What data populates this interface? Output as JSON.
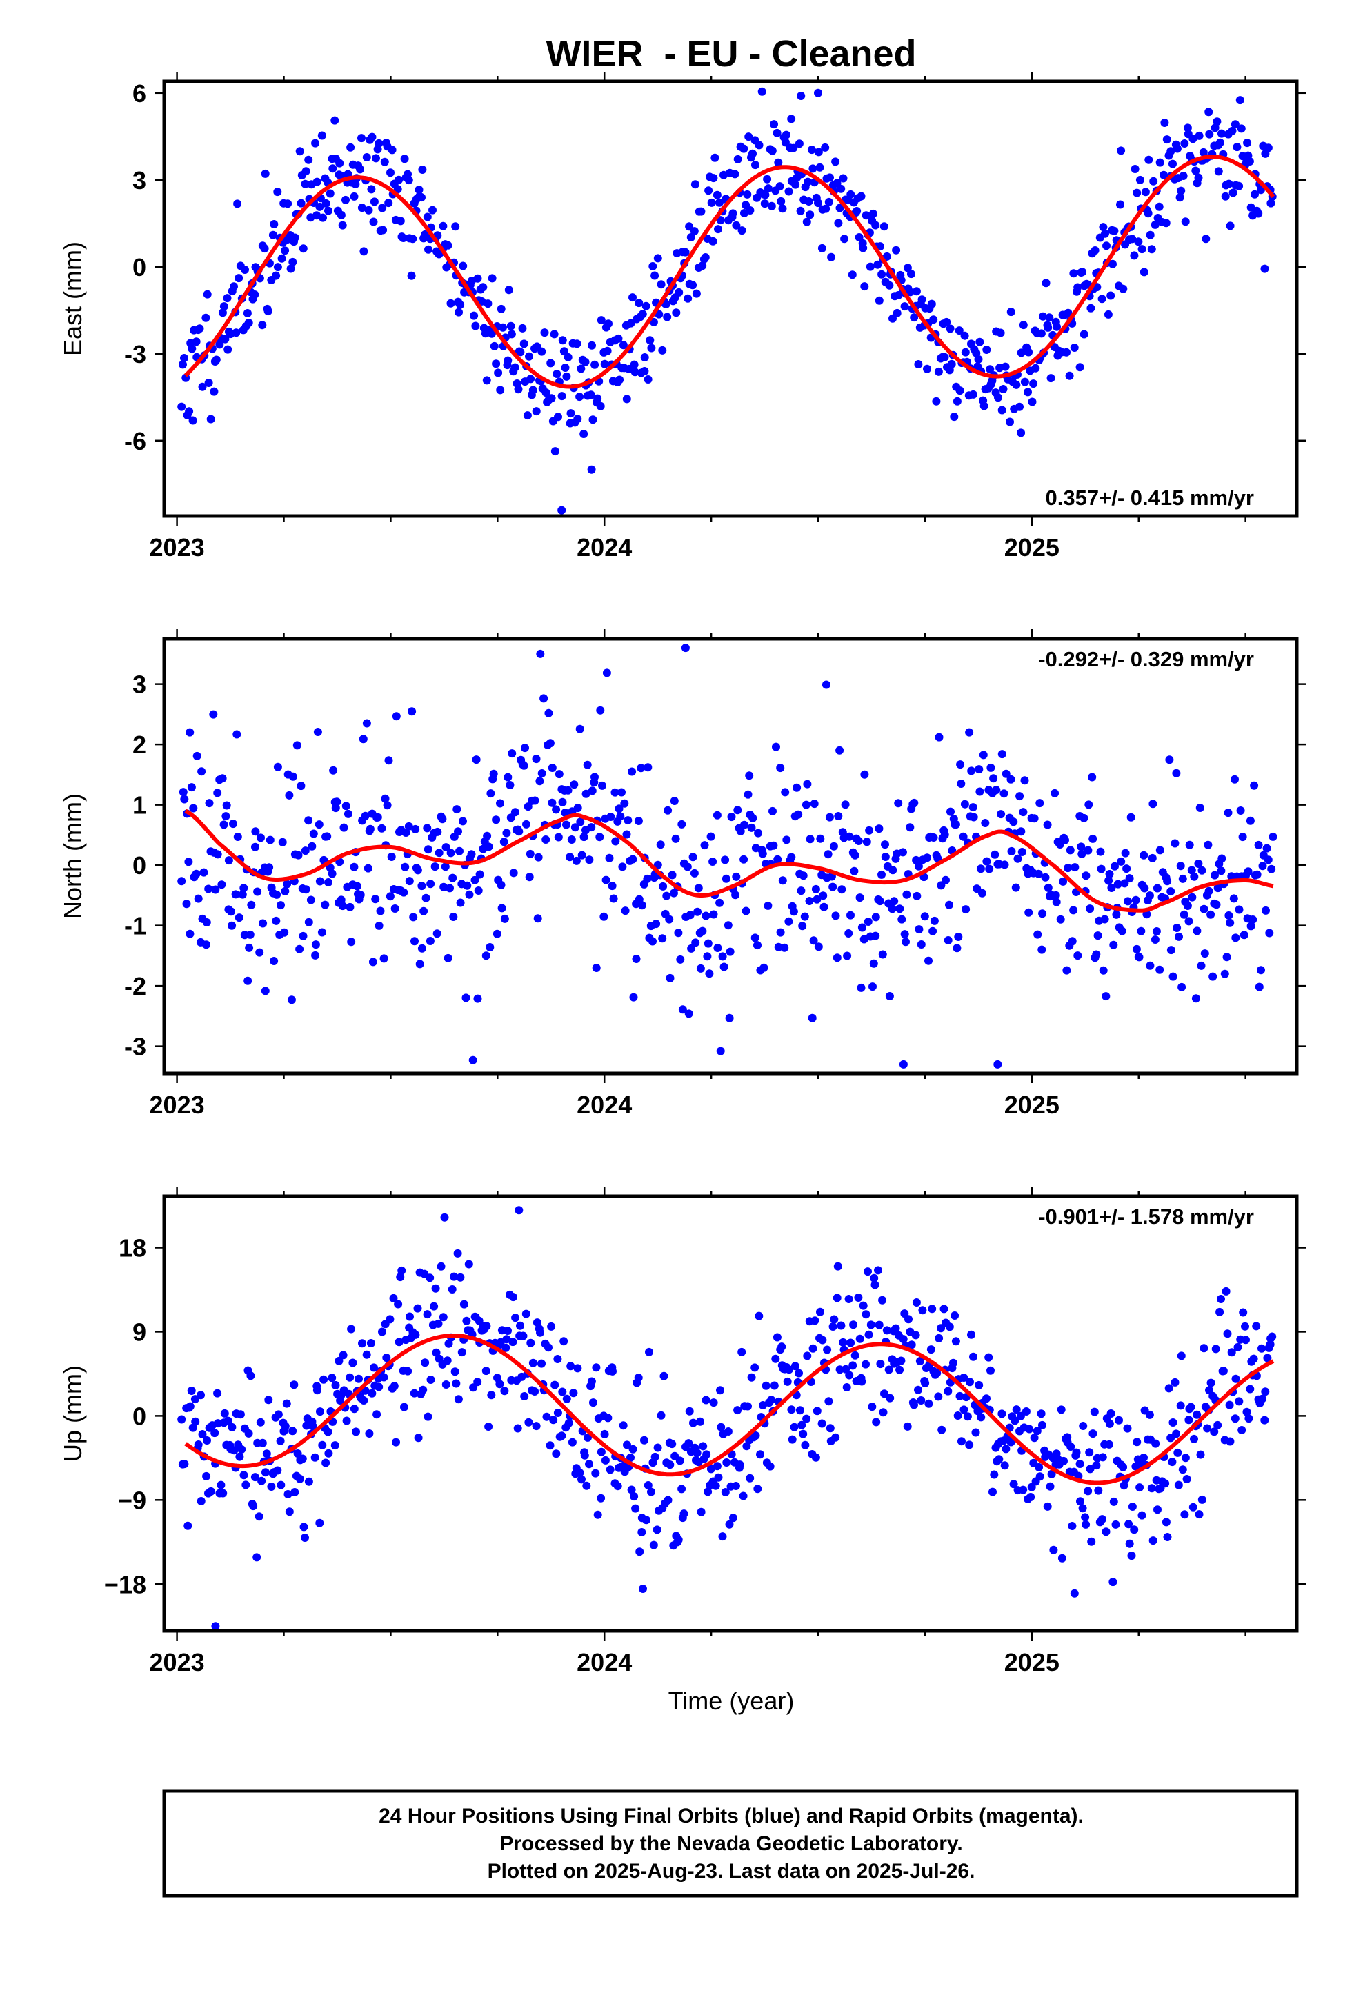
{
  "title": "WIER  - EU - Cleaned",
  "xlabel": "Time (year)",
  "footer": {
    "line1": "24 Hour Positions Using Final Orbits (blue) and Rapid Orbits (magenta).",
    "line2": "Processed by the Nevada Geodetic Laboratory.",
    "line3": "Plotted on 2025-Aug-23. Last data on 2025-Jul-26."
  },
  "colors": {
    "points": "#0000ff",
    "fit": "#ff0000",
    "frame": "#000000"
  },
  "chart_data": [
    {
      "type": "scatter",
      "panel": "East",
      "ylabel": "East (mm)",
      "rate_label": "0.357+/- 0.415 mm/yr",
      "rate_position": "bottom-right",
      "xlim": [
        2022.97,
        2025.62
      ],
      "ylim": [
        -8.6,
        6.4
      ],
      "x_ticks": [
        2023,
        2024,
        2025
      ],
      "y_ticks": [
        -6,
        -3,
        0,
        3,
        6
      ],
      "y_tick_labels": [
        "-6",
        "-3",
        "0",
        "3",
        "6"
      ],
      "model": {
        "offset": -0.3,
        "rate": 0.357,
        "amp": 3.7,
        "peak": 0.42,
        "x0": 2024.3
      },
      "scatter": {
        "n": 780,
        "noise": 1.0,
        "seed": 11
      },
      "outliers": [
        [
          2023.9,
          -8.4
        ],
        [
          2023.97,
          -7.0
        ],
        [
          2024.5,
          6.0
        ],
        [
          2024.46,
          5.9
        ]
      ]
    },
    {
      "type": "scatter",
      "panel": "North",
      "ylabel": "North (mm)",
      "rate_label": "-0.292+/- 0.329 mm/yr",
      "rate_position": "top-right",
      "xlim": [
        2022.97,
        2025.62
      ],
      "ylim": [
        -3.45,
        3.75
      ],
      "x_ticks": [
        2023,
        2024,
        2025
      ],
      "y_ticks": [
        -3,
        -2,
        -1,
        0,
        1,
        2,
        3
      ],
      "y_tick_labels": [
        "-3",
        "-2",
        "-1",
        "0",
        "1",
        "2",
        "3"
      ],
      "fit_knots": {
        "x": [
          2023.02,
          2023.1,
          2023.2,
          2023.3,
          2023.4,
          2023.5,
          2023.6,
          2023.7,
          2023.8,
          2023.9,
          2023.95,
          2024.05,
          2024.15,
          2024.22,
          2024.3,
          2024.4,
          2024.5,
          2024.6,
          2024.7,
          2024.8,
          2024.9,
          2024.95,
          2025.05,
          2025.15,
          2025.25,
          2025.3,
          2025.4,
          2025.5,
          2025.57
        ],
        "y": [
          0.9,
          0.35,
          -0.2,
          -0.15,
          0.2,
          0.3,
          0.1,
          0.05,
          0.4,
          0.75,
          0.8,
          0.4,
          -0.25,
          -0.5,
          -0.35,
          0.0,
          -0.05,
          -0.25,
          -0.25,
          0.1,
          0.5,
          0.5,
          0.0,
          -0.6,
          -0.75,
          -0.65,
          -0.35,
          -0.25,
          -0.35
        ]
      },
      "scatter": {
        "n": 780,
        "noise": 0.9,
        "seed": 23
      },
      "outliers": [
        [
          2024.19,
          3.6
        ],
        [
          2023.85,
          3.5
        ],
        [
          2024.7,
          -3.3
        ],
        [
          2024.92,
          -3.3
        ],
        [
          2023.03,
          2.2
        ]
      ]
    },
    {
      "type": "scatter",
      "panel": "Up",
      "ylabel": "Up (mm)",
      "rate_label": "-0.901+/- 1.578 mm/yr",
      "rate_position": "top-right",
      "xlim": [
        2022.97,
        2025.62
      ],
      "ylim": [
        -23.0,
        23.5
      ],
      "x_ticks": [
        2023,
        2024,
        2025
      ],
      "y_ticks": [
        -18,
        -9,
        0,
        9,
        18
      ],
      "y_tick_labels": [
        "−18",
        "−9",
        "0",
        "9",
        "18"
      ],
      "model": {
        "offset": 0.8,
        "rate": -0.901,
        "amp": 7.2,
        "peak": 0.65,
        "x0": 2024.3
      },
      "scatter": {
        "n": 780,
        "noise": 4.2,
        "seed": 37
      },
      "outliers": [
        [
          2023.09,
          -22.5
        ],
        [
          2023.8,
          22.0
        ],
        [
          2024.09,
          -18.5
        ],
        [
          2025.1,
          -19.0
        ]
      ]
    }
  ]
}
